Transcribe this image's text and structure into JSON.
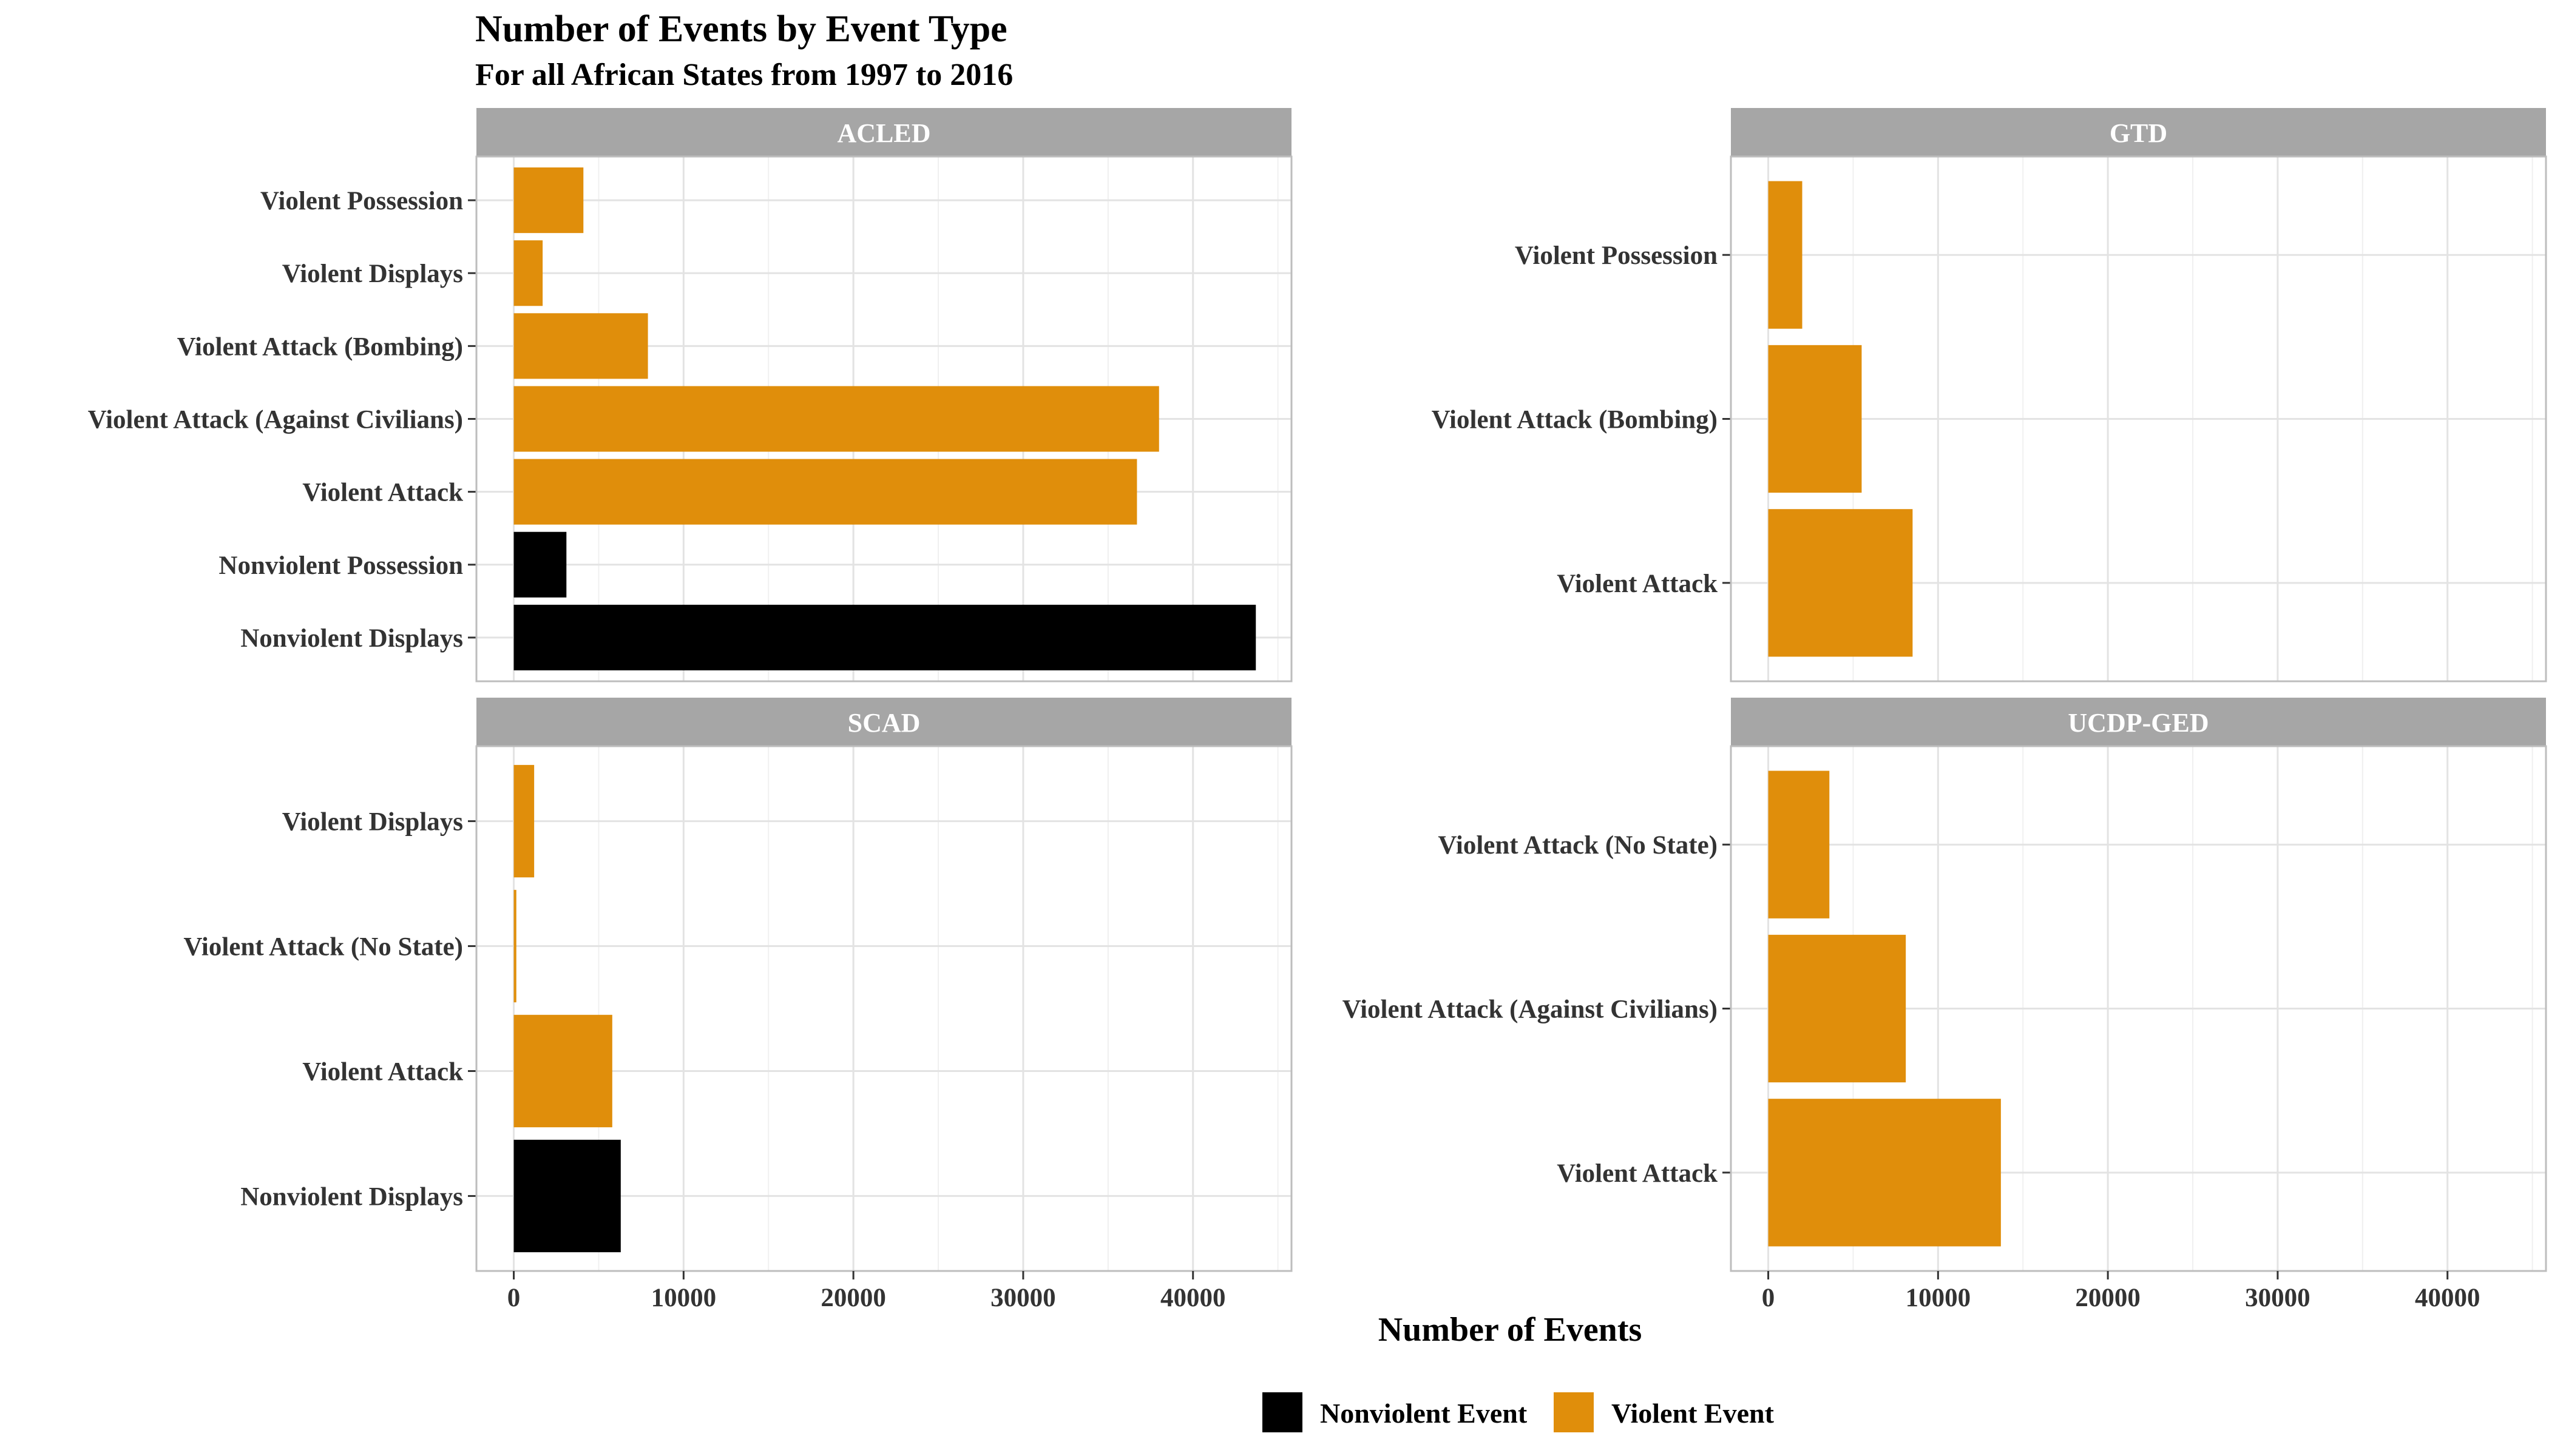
{
  "chart_data": {
    "type": "bar",
    "orientation": "horizontal",
    "title": "Number of Events by Event Type",
    "subtitle": "For all African States from 1997 to 2016",
    "xlabel": "Number of Events",
    "xlim": [
      -2200,
      45800
    ],
    "xticks": [
      0,
      10000,
      20000,
      30000,
      40000
    ],
    "grid": true,
    "legend_position": "bottom",
    "legend": [
      {
        "name": "Nonviolent Event",
        "color": "#000000"
      },
      {
        "name": "Violent Event",
        "color": "#E08E0B"
      }
    ],
    "panels": [
      {
        "name": "ACLED",
        "categories": [
          "Violent Possession",
          "Violent Displays",
          "Violent Attack (Bombing)",
          "Violent Attack (Against Civilians)",
          "Violent Attack",
          "Nonviolent Possession",
          "Nonviolent Displays"
        ],
        "values": [
          4100,
          1700,
          7900,
          38000,
          36700,
          3100,
          43700
        ],
        "types": [
          "Violent Event",
          "Violent Event",
          "Violent Event",
          "Violent Event",
          "Violent Event",
          "Nonviolent Event",
          "Nonviolent Event"
        ]
      },
      {
        "name": "GTD",
        "categories": [
          "Violent Possession",
          "Violent Attack (Bombing)",
          "Violent Attack"
        ],
        "values": [
          2000,
          5500,
          8500
        ],
        "types": [
          "Violent Event",
          "Violent Event",
          "Violent Event"
        ]
      },
      {
        "name": "SCAD",
        "categories": [
          "Violent Displays",
          "Violent Attack (No State)",
          "Violent Attack",
          "Nonviolent Displays"
        ],
        "values": [
          1200,
          150,
          5800,
          6300
        ],
        "types": [
          "Violent Event",
          "Violent Event",
          "Violent Event",
          "Nonviolent Event"
        ]
      },
      {
        "name": "UCDP-GED",
        "categories": [
          "Violent Attack (No State)",
          "Violent Attack (Against Civilians)",
          "Violent Attack"
        ],
        "values": [
          3600,
          8100,
          13700
        ],
        "types": [
          "Violent Event",
          "Violent Event",
          "Violent Event"
        ]
      }
    ]
  }
}
